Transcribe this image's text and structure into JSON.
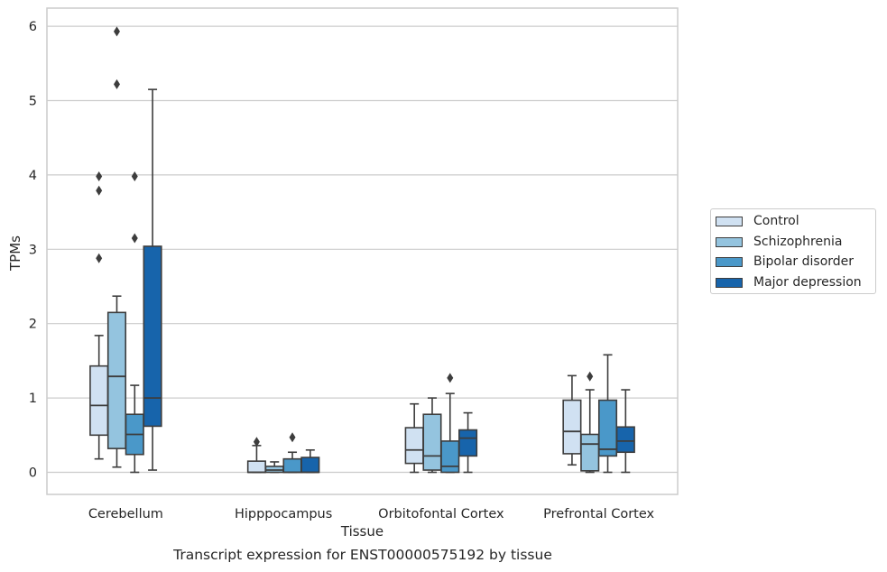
{
  "chart_data": {
    "type": "boxplot",
    "title": "",
    "caption": "Transcript expression for ENST00000575192 by tissue",
    "xlabel": "Tissue",
    "ylabel": "TPMs",
    "ylim": [
      -0.28,
      6.25
    ],
    "yticks": [
      0,
      1,
      2,
      3,
      4,
      5,
      6
    ],
    "grid": "horizontal",
    "legend_position": "right",
    "categories": [
      "Cerebellum",
      "Hipppocampus",
      "Orbitofontal Cortex",
      "Prefrontal Cortex"
    ],
    "series": [
      {
        "name": "Control",
        "color": "#d0e1f2",
        "boxes": [
          {
            "whislo": 0.18,
            "q1": 0.5,
            "med": 0.9,
            "q3": 1.43,
            "whishi": 1.84,
            "fliers": [
              2.88,
              3.79,
              3.98
            ]
          },
          {
            "whislo": 0.0,
            "q1": 0.0,
            "med": 0.0,
            "q3": 0.15,
            "whishi": 0.36,
            "fliers": [
              0.41
            ]
          },
          {
            "whislo": 0.0,
            "q1": 0.12,
            "med": 0.3,
            "q3": 0.6,
            "whishi": 0.92,
            "fliers": []
          },
          {
            "whislo": 0.1,
            "q1": 0.25,
            "med": 0.55,
            "q3": 0.97,
            "whishi": 1.3,
            "fliers": []
          }
        ]
      },
      {
        "name": "Schizophrenia",
        "color": "#94c4df",
        "boxes": [
          {
            "whislo": 0.07,
            "q1": 0.32,
            "med": 1.29,
            "q3": 2.15,
            "whishi": 2.37,
            "fliers": [
              5.22,
              5.93
            ]
          },
          {
            "whislo": 0.0,
            "q1": 0.0,
            "med": 0.03,
            "q3": 0.08,
            "whishi": 0.14,
            "fliers": []
          },
          {
            "whislo": 0.0,
            "q1": 0.03,
            "med": 0.22,
            "q3": 0.78,
            "whishi": 1.0,
            "fliers": []
          },
          {
            "whislo": 0.0,
            "q1": 0.02,
            "med": 0.38,
            "q3": 0.51,
            "whishi": 1.11,
            "fliers": [
              1.29
            ]
          }
        ]
      },
      {
        "name": "Bipolar disorder",
        "color": "#4a98c9",
        "boxes": [
          {
            "whislo": 0.0,
            "q1": 0.24,
            "med": 0.51,
            "q3": 0.78,
            "whishi": 1.17,
            "fliers": [
              3.15,
              3.98
            ]
          },
          {
            "whislo": 0.0,
            "q1": 0.0,
            "med": 0.0,
            "q3": 0.18,
            "whishi": 0.27,
            "fliers": [
              0.47
            ]
          },
          {
            "whislo": 0.0,
            "q1": 0.0,
            "med": 0.08,
            "q3": 0.42,
            "whishi": 1.06,
            "fliers": [
              1.27
            ]
          },
          {
            "whislo": 0.0,
            "q1": 0.22,
            "med": 0.31,
            "q3": 0.97,
            "whishi": 1.58,
            "fliers": []
          }
        ]
      },
      {
        "name": "Major depression",
        "color": "#1764ab",
        "boxes": [
          {
            "whislo": 0.03,
            "q1": 0.62,
            "med": 1.0,
            "q3": 3.04,
            "whishi": 5.15,
            "fliers": []
          },
          {
            "whislo": 0.0,
            "q1": 0.0,
            "med": 0.0,
            "q3": 0.2,
            "whishi": 0.3,
            "fliers": []
          },
          {
            "whislo": 0.0,
            "q1": 0.22,
            "med": 0.46,
            "q3": 0.57,
            "whishi": 0.8,
            "fliers": []
          },
          {
            "whislo": 0.0,
            "q1": 0.27,
            "med": 0.42,
            "q3": 0.61,
            "whishi": 1.11,
            "fliers": []
          }
        ]
      }
    ]
  }
}
